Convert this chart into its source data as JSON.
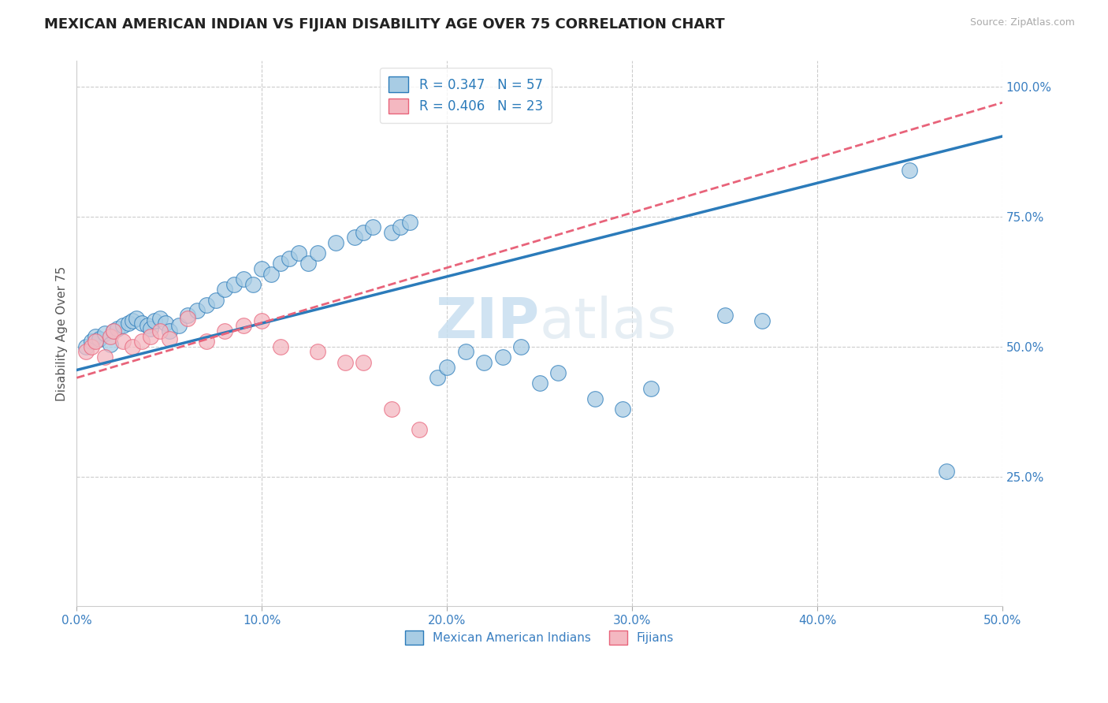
{
  "title": "MEXICAN AMERICAN INDIAN VS FIJIAN DISABILITY AGE OVER 75 CORRELATION CHART",
  "source": "Source: ZipAtlas.com",
  "ylabel": "Disability Age Over 75",
  "xlim": [
    0.0,
    0.5
  ],
  "ylim": [
    0.0,
    1.05
  ],
  "ytick_positions": [
    0.25,
    0.5,
    0.75,
    1.0
  ],
  "ytick_labels": [
    "25.0%",
    "50.0%",
    "75.0%",
    "100.0%"
  ],
  "xtick_labels": [
    "0.0%",
    "10.0%",
    "20.0%",
    "30.0%",
    "40.0%",
    "50.0%"
  ],
  "legend_entries": [
    "Mexican American Indians",
    "Fijians"
  ],
  "R_blue": "0.347",
  "N_blue": "57",
  "R_pink": "0.406",
  "N_pink": "23",
  "blue_color": "#a8cce4",
  "pink_color": "#f4b8c1",
  "blue_line_color": "#2b7bba",
  "pink_line_color": "#e8637a",
  "watermark_zip": "ZIP",
  "watermark_atlas": "atlas",
  "blue_scatter_x": [
    0.005,
    0.008,
    0.01,
    0.012,
    0.015,
    0.018,
    0.02,
    0.022,
    0.025,
    0.028,
    0.03,
    0.032,
    0.035,
    0.038,
    0.04,
    0.042,
    0.045,
    0.048,
    0.05,
    0.055,
    0.06,
    0.065,
    0.07,
    0.075,
    0.08,
    0.085,
    0.09,
    0.095,
    0.1,
    0.105,
    0.11,
    0.115,
    0.12,
    0.125,
    0.13,
    0.14,
    0.15,
    0.155,
    0.16,
    0.17,
    0.175,
    0.18,
    0.195,
    0.2,
    0.21,
    0.22,
    0.23,
    0.24,
    0.25,
    0.26,
    0.28,
    0.295,
    0.31,
    0.35,
    0.37,
    0.45,
    0.47
  ],
  "blue_scatter_y": [
    0.5,
    0.51,
    0.52,
    0.515,
    0.525,
    0.505,
    0.53,
    0.535,
    0.54,
    0.545,
    0.55,
    0.555,
    0.545,
    0.54,
    0.535,
    0.55,
    0.555,
    0.545,
    0.53,
    0.54,
    0.56,
    0.57,
    0.58,
    0.59,
    0.61,
    0.62,
    0.63,
    0.62,
    0.65,
    0.64,
    0.66,
    0.67,
    0.68,
    0.66,
    0.68,
    0.7,
    0.71,
    0.72,
    0.73,
    0.72,
    0.73,
    0.74,
    0.44,
    0.46,
    0.49,
    0.47,
    0.48,
    0.5,
    0.43,
    0.45,
    0.4,
    0.38,
    0.42,
    0.56,
    0.55,
    0.84,
    0.26
  ],
  "pink_scatter_x": [
    0.005,
    0.008,
    0.01,
    0.015,
    0.018,
    0.02,
    0.025,
    0.03,
    0.035,
    0.04,
    0.045,
    0.05,
    0.06,
    0.07,
    0.08,
    0.09,
    0.1,
    0.11,
    0.13,
    0.145,
    0.155,
    0.17,
    0.185
  ],
  "pink_scatter_y": [
    0.49,
    0.5,
    0.51,
    0.48,
    0.52,
    0.53,
    0.51,
    0.5,
    0.51,
    0.52,
    0.53,
    0.515,
    0.555,
    0.51,
    0.53,
    0.54,
    0.55,
    0.5,
    0.49,
    0.47,
    0.47,
    0.38,
    0.34
  ],
  "blue_line_x": [
    0.0,
    0.5
  ],
  "blue_line_y": [
    0.455,
    0.905
  ],
  "pink_line_x": [
    0.0,
    0.5
  ],
  "pink_line_y": [
    0.44,
    0.97
  ]
}
